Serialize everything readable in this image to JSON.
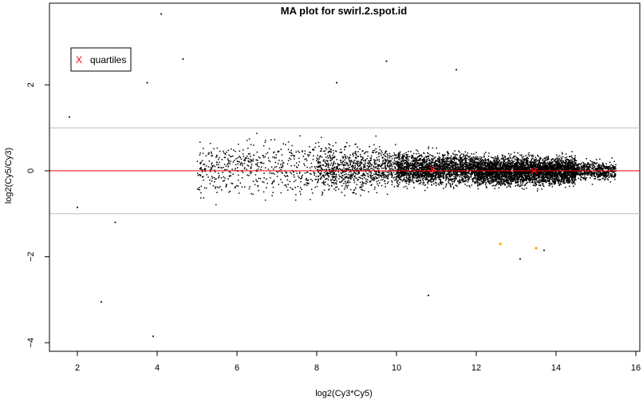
{
  "chart_data": {
    "type": "scatter",
    "title": "MA plot for swirl.2.spot.id",
    "xlabel": "log2(Cy3*Cy5)",
    "ylabel": "log2(Cy5/Cy3)",
    "xlim": [
      1.3,
      16.1
    ],
    "ylim": [
      -4.2,
      3.9
    ],
    "x_ticks": [
      2,
      4,
      6,
      8,
      10,
      12,
      14,
      16
    ],
    "y_ticks": [
      -4,
      -2,
      0,
      2
    ],
    "grid": false,
    "reference_lines": {
      "horizontal_gray": [
        -1,
        1
      ],
      "horizontal_red": 0
    },
    "legend": {
      "position": "top-left",
      "entries": [
        {
          "label": "quartiles",
          "marker": "X",
          "color": "#ff0000"
        }
      ]
    },
    "quartiles": [
      {
        "x": 10.9,
        "y": 0.03
      },
      {
        "x": 13.45,
        "y": 0.0
      }
    ],
    "highlighted_points": {
      "color": "#ffa500",
      "points": [
        {
          "x": 12.6,
          "y": -1.7
        },
        {
          "x": 13.5,
          "y": -1.8
        }
      ]
    },
    "notable_points": [
      {
        "x": 4.1,
        "y": 3.65
      },
      {
        "x": 3.75,
        "y": 2.05
      },
      {
        "x": 4.65,
        "y": 2.6
      },
      {
        "x": 9.75,
        "y": 2.55
      },
      {
        "x": 11.5,
        "y": 2.35
      },
      {
        "x": 8.5,
        "y": 2.05
      },
      {
        "x": 1.8,
        "y": 1.25
      },
      {
        "x": 2.6,
        "y": -3.05
      },
      {
        "x": 3.9,
        "y": -3.85
      },
      {
        "x": 2.0,
        "y": -0.85
      },
      {
        "x": 2.95,
        "y": -1.2
      },
      {
        "x": 10.8,
        "y": -2.9
      },
      {
        "x": 13.1,
        "y": -2.05
      },
      {
        "x": 13.7,
        "y": -1.85
      }
    ],
    "point_cloud": {
      "description_free_note": "",
      "regions": [
        {
          "x_from": 5.0,
          "x_to": 8.0,
          "y_center": 0.05,
          "y_spread": 0.55,
          "count": 500
        },
        {
          "x_from": 8.0,
          "x_to": 10.0,
          "y_center": 0.05,
          "y_spread": 0.45,
          "count": 900
        },
        {
          "x_from": 10.0,
          "x_to": 12.0,
          "y_center": 0.05,
          "y_spread": 0.32,
          "count": 2000
        },
        {
          "x_from": 12.0,
          "x_to": 14.5,
          "y_center": 0.0,
          "y_spread": 0.28,
          "count": 3600
        },
        {
          "x_from": 14.5,
          "x_to": 15.5,
          "y_center": 0.0,
          "y_spread": 0.18,
          "count": 500
        }
      ]
    },
    "colors": {
      "points": "#000000",
      "zero_line": "#ff0000",
      "threshold_lines": "#bebebe",
      "quartile_marker": "#ff0000"
    }
  }
}
